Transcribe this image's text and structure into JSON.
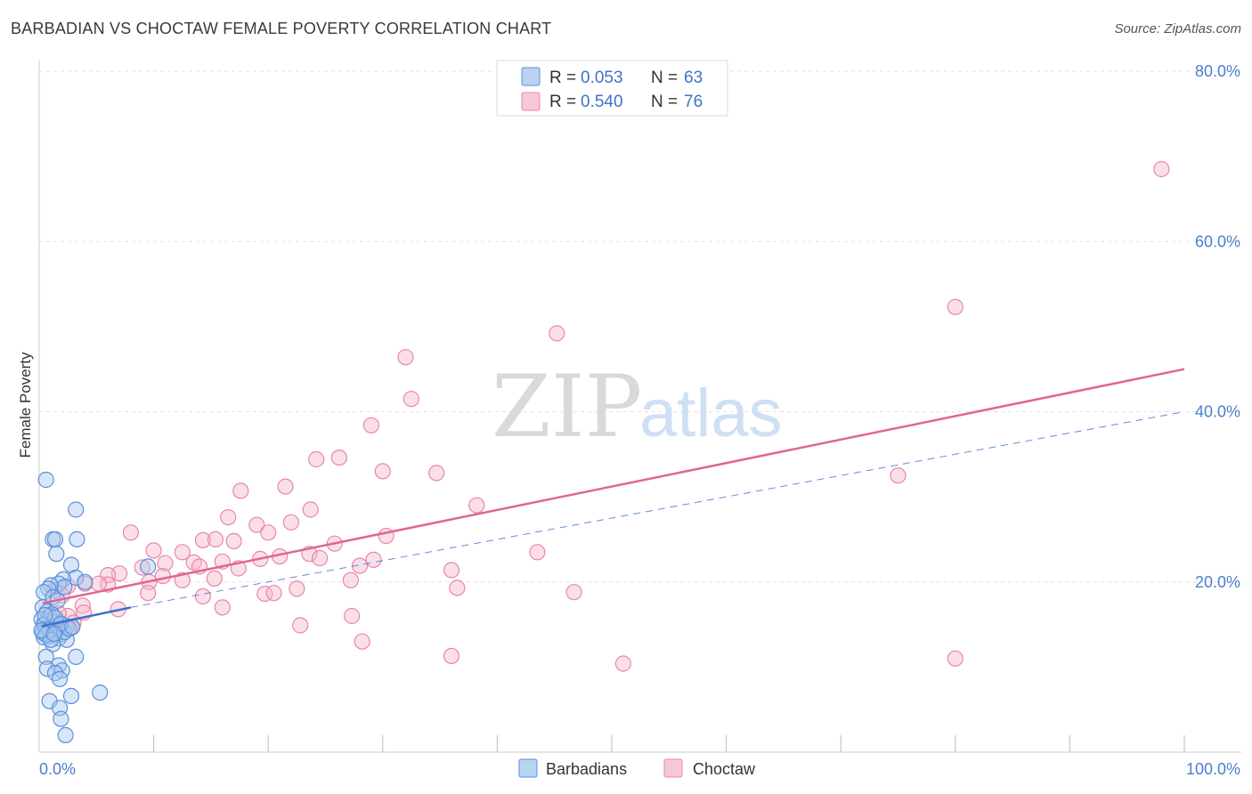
{
  "title": "BARBADIAN VS CHOCTAW FEMALE POVERTY CORRELATION CHART",
  "source": "Source: ZipAtlas.com",
  "watermark": {
    "zip": "ZIP",
    "atlas": "atlas"
  },
  "colors": {
    "blue_fill": "#a9c8f0",
    "blue_stroke": "#5b8fd8",
    "blue_line": "#3a6fd0",
    "pink_fill": "#f6b9cd",
    "pink_stroke": "#e887a8",
    "pink_line": "#e06690",
    "tick_text": "#4a7fcb",
    "grid": "#e2e2e2"
  },
  "legend": {
    "rows": [
      {
        "r_label": "R =",
        "r_value": "0.053",
        "n_label": "N =",
        "n_value": "63"
      },
      {
        "r_label": "R =",
        "r_value": "0.540",
        "n_label": "N =",
        "n_value": "76"
      }
    ]
  },
  "bottom_legend": {
    "barbadians": "Barbadians",
    "choctaw": "Choctaw"
  },
  "chart_data": {
    "type": "scatter",
    "title": "BARBADIAN VS CHOCTAW FEMALE POVERTY CORRELATION CHART",
    "xlabel": "",
    "ylabel": "Female Poverty",
    "xlim": [
      0,
      100
    ],
    "ylim": [
      0,
      80
    ],
    "x_tick_labels": [
      "0.0%",
      "100.0%"
    ],
    "y_ticks": [
      20,
      40,
      60,
      80
    ],
    "y_tick_labels": [
      "20.0%",
      "40.0%",
      "60.0%",
      "80.0%"
    ],
    "series": [
      {
        "name": "Barbadians",
        "r": 0.053,
        "n": 63,
        "trend_solid": [
          [
            0.2,
            14.8
          ],
          [
            8.0,
            17.0
          ]
        ],
        "trend_dashed": [
          [
            8.0,
            17.0
          ],
          [
            100,
            40.0
          ]
        ],
        "points": [
          [
            0.6,
            32.0
          ],
          [
            3.2,
            28.5
          ],
          [
            1.2,
            25.0
          ],
          [
            1.4,
            25.0
          ],
          [
            3.3,
            25.0
          ],
          [
            1.5,
            23.3
          ],
          [
            2.8,
            22.0
          ],
          [
            9.5,
            21.8
          ],
          [
            3.2,
            20.5
          ],
          [
            2.1,
            20.3
          ],
          [
            4.0,
            20.0
          ],
          [
            1.7,
            19.8
          ],
          [
            2.2,
            19.4
          ],
          [
            1.0,
            19.6
          ],
          [
            0.8,
            19.2
          ],
          [
            0.4,
            18.8
          ],
          [
            1.2,
            18.2
          ],
          [
            1.6,
            17.8
          ],
          [
            0.3,
            17.0
          ],
          [
            0.7,
            16.5
          ],
          [
            0.9,
            16.0
          ],
          [
            0.2,
            15.6
          ],
          [
            1.3,
            15.3
          ],
          [
            0.5,
            15.0
          ],
          [
            1.8,
            15.0
          ],
          [
            2.4,
            14.8
          ],
          [
            0.6,
            14.5
          ],
          [
            1.0,
            14.2
          ],
          [
            0.3,
            14.0
          ],
          [
            1.5,
            14.0
          ],
          [
            2.0,
            13.9
          ],
          [
            0.8,
            13.6
          ],
          [
            1.7,
            13.4
          ],
          [
            2.4,
            13.2
          ],
          [
            0.4,
            13.5
          ],
          [
            1.2,
            12.7
          ],
          [
            0.6,
            11.2
          ],
          [
            3.2,
            11.2
          ],
          [
            1.7,
            10.2
          ],
          [
            0.7,
            9.8
          ],
          [
            2.0,
            9.6
          ],
          [
            1.4,
            9.3
          ],
          [
            1.8,
            8.6
          ],
          [
            2.8,
            6.6
          ],
          [
            5.3,
            7.0
          ],
          [
            0.9,
            6.0
          ],
          [
            1.8,
            5.2
          ],
          [
            1.9,
            3.9
          ],
          [
            2.3,
            2.0
          ],
          [
            0.4,
            15.0
          ],
          [
            1.1,
            16.2
          ],
          [
            1.5,
            14.6
          ],
          [
            2.2,
            14.1
          ],
          [
            0.9,
            14.4
          ],
          [
            1.4,
            15.8
          ],
          [
            0.6,
            13.8
          ],
          [
            2.6,
            14.5
          ],
          [
            1.0,
            13.2
          ],
          [
            0.2,
            14.3
          ],
          [
            1.9,
            15.1
          ],
          [
            0.5,
            16.1
          ],
          [
            1.3,
            13.9
          ],
          [
            2.9,
            14.7
          ]
        ]
      },
      {
        "name": "Choctaw",
        "r": 0.54,
        "n": 76,
        "trend_solid": [
          [
            0.3,
            17.5
          ],
          [
            100,
            45.0
          ]
        ],
        "points": [
          [
            98.0,
            68.5
          ],
          [
            80.0,
            52.3
          ],
          [
            45.2,
            49.2
          ],
          [
            32.0,
            46.4
          ],
          [
            32.5,
            41.5
          ],
          [
            29.0,
            38.4
          ],
          [
            24.2,
            34.4
          ],
          [
            26.2,
            34.6
          ],
          [
            30.0,
            33.0
          ],
          [
            34.7,
            32.8
          ],
          [
            75.0,
            32.5
          ],
          [
            21.5,
            31.2
          ],
          [
            17.6,
            30.7
          ],
          [
            38.2,
            29.0
          ],
          [
            23.7,
            28.5
          ],
          [
            16.5,
            27.6
          ],
          [
            22.0,
            27.0
          ],
          [
            19.0,
            26.7
          ],
          [
            20.0,
            25.8
          ],
          [
            8.0,
            25.8
          ],
          [
            14.3,
            24.9
          ],
          [
            15.4,
            25.0
          ],
          [
            17.0,
            24.8
          ],
          [
            25.8,
            24.5
          ],
          [
            30.3,
            25.4
          ],
          [
            10.0,
            23.7
          ],
          [
            12.5,
            23.5
          ],
          [
            23.6,
            23.3
          ],
          [
            43.5,
            23.5
          ],
          [
            19.3,
            22.7
          ],
          [
            21.0,
            23.0
          ],
          [
            24.5,
            22.8
          ],
          [
            29.2,
            22.6
          ],
          [
            13.5,
            22.3
          ],
          [
            16.0,
            22.4
          ],
          [
            11.0,
            22.2
          ],
          [
            14.0,
            21.8
          ],
          [
            28.0,
            21.9
          ],
          [
            36.0,
            21.4
          ],
          [
            9.0,
            21.7
          ],
          [
            7.0,
            21.0
          ],
          [
            17.4,
            21.6
          ],
          [
            6.0,
            20.8
          ],
          [
            10.8,
            20.7
          ],
          [
            12.5,
            20.2
          ],
          [
            15.3,
            20.4
          ],
          [
            27.2,
            20.2
          ],
          [
            9.6,
            20.0
          ],
          [
            6.0,
            19.7
          ],
          [
            22.5,
            19.2
          ],
          [
            36.5,
            19.3
          ],
          [
            4.0,
            19.8
          ],
          [
            2.5,
            19.5
          ],
          [
            1.3,
            19.0
          ],
          [
            9.5,
            18.7
          ],
          [
            19.7,
            18.6
          ],
          [
            20.5,
            18.7
          ],
          [
            46.7,
            18.8
          ],
          [
            2.0,
            18.4
          ],
          [
            14.3,
            18.3
          ],
          [
            16.0,
            17.0
          ],
          [
            3.8,
            17.2
          ],
          [
            3.9,
            16.4
          ],
          [
            6.9,
            16.8
          ],
          [
            2.5,
            16.0
          ],
          [
            27.3,
            16.0
          ],
          [
            1.0,
            15.5
          ],
          [
            2.8,
            14.6
          ],
          [
            22.8,
            14.9
          ],
          [
            28.2,
            13.0
          ],
          [
            36.0,
            11.3
          ],
          [
            51.0,
            10.4
          ],
          [
            80.0,
            11.0
          ],
          [
            1.7,
            16.3
          ],
          [
            3.0,
            15.2
          ],
          [
            5.2,
            19.8
          ]
        ]
      }
    ]
  }
}
